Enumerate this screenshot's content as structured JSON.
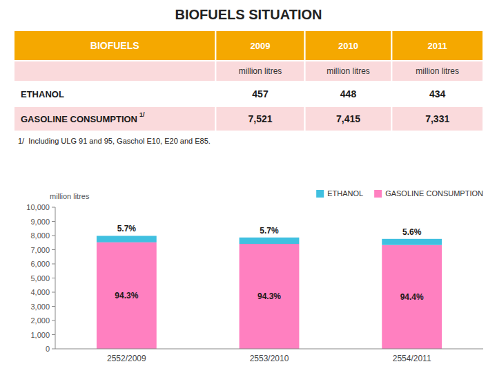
{
  "chart_data": [
    {
      "type": "table",
      "title": "BIOFUELS SITUATION",
      "color": "#F5A800",
      "columns": [
        "BIOFUELS",
        "2009",
        "2010",
        "2011"
      ],
      "units": "million litres",
      "rows": [
        {
          "name": "ETHANOL",
          "values": [
            457,
            448,
            434
          ]
        },
        {
          "name": "GASOLINE CONSUMPTION",
          "footnote_mark": "1/",
          "values": [
            7521,
            7415,
            7331
          ],
          "value_labels": [
            "7,521",
            "7,415",
            "7,331"
          ]
        }
      ],
      "annotations": [
        "1/  Including ULG 91 and 95, Gaschol E10, E20 and E85."
      ]
    },
    {
      "type": "bar",
      "stacked": true,
      "y_label": "million litres",
      "categories": [
        "2552/2009",
        "2553/2010",
        "2554/2011"
      ],
      "series": [
        {
          "name": "GASOLINE CONSUMPTION",
          "color": "#FF80C0",
          "values": [
            7521,
            7415,
            7331
          ],
          "shares": [
            {
              "value": 94.3,
              "label": "94.3%"
            },
            {
              "value": 94.3,
              "label": "94.3%"
            },
            {
              "value": 94.4,
              "label": "94.4%"
            }
          ]
        },
        {
          "name": "ETHANOL",
          "color": "#40C0E0",
          "values": [
            457,
            448,
            434
          ],
          "shares": [
            {
              "value": 5.7,
              "label": "5.7%"
            },
            {
              "value": 5.7,
              "label": "5.7%"
            },
            {
              "value": 5.6,
              "label": "5.6%"
            }
          ]
        }
      ],
      "ylim": [
        0,
        10000
      ],
      "yticks": [
        0,
        {
          "value": 1000,
          "label": "1,000"
        },
        {
          "value": 2000,
          "label": "2,000"
        },
        {
          "value": 3000,
          "label": "3,000"
        },
        {
          "value": 4000,
          "label": "4,000"
        },
        {
          "value": 5000,
          "label": "5,000"
        },
        {
          "value": 6000,
          "label": "6,000"
        },
        {
          "value": 7000,
          "label": "7,000"
        },
        {
          "value": 8000,
          "label": "8,000"
        },
        {
          "value": 9000,
          "label": "9,000"
        },
        {
          "value": 10000,
          "label": "10,000"
        }
      ],
      "grid": false,
      "legend": "upper right"
    }
  ]
}
